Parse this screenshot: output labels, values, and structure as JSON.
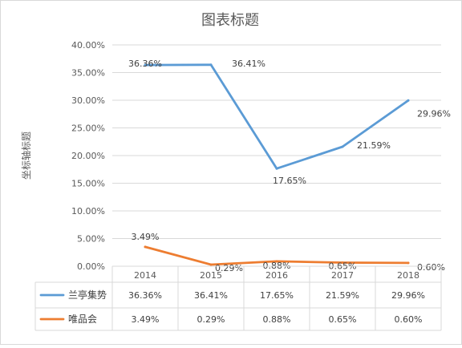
{
  "chart_data": {
    "type": "line",
    "title": "图表标题",
    "ylabel": "坐标轴标题",
    "categories": [
      "2014",
      "2015",
      "2016",
      "2017",
      "2018"
    ],
    "ylim": [
      0,
      40
    ],
    "yticks": [
      0,
      5,
      10,
      15,
      20,
      25,
      30,
      35,
      40
    ],
    "ytick_labels": [
      "0.00%",
      "5.00%",
      "10.00%",
      "15.00%",
      "20.00%",
      "25.00%",
      "30.00%",
      "35.00%",
      "40.00%"
    ],
    "grid": true,
    "legend": "data-table",
    "series": [
      {
        "name": "兰亭集势",
        "color": "#5b9bd5",
        "values": [
          36.36,
          36.41,
          17.65,
          21.59,
          29.96
        ],
        "labels": [
          "36.36%",
          "36.41%",
          "17.65%",
          "21.59%",
          "29.96%"
        ]
      },
      {
        "name": "唯品会",
        "color": "#ed7d31",
        "values": [
          3.49,
          0.29,
          0.88,
          0.65,
          0.6
        ],
        "labels": [
          "3.49%",
          "0.29%",
          "0.88%",
          "0.65%",
          "0.60%"
        ]
      }
    ]
  }
}
